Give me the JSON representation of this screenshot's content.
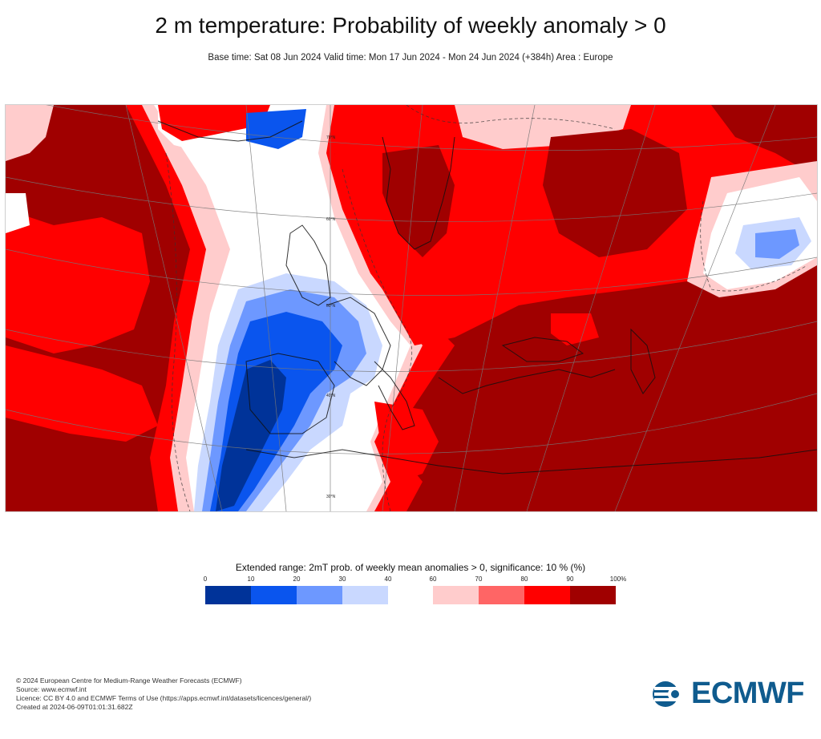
{
  "title": "2 m temperature: Probability of weekly anomaly > 0",
  "subtitle": "Base time: Sat 08 Jun 2024 Valid time: Mon 17 Jun 2024 - Mon 24 Jun 2024 (+384h) Area : Europe",
  "map": {
    "lat_labels": [
      "70°N",
      "60°N",
      "50°N",
      "40°N",
      "30°N"
    ],
    "colors": {
      "p0_10": "#003399",
      "p10_20": "#0a55ee",
      "p20_30": "#6d98ff",
      "p30_40": "#c9d8ff",
      "p40_60": "#ffffff",
      "p60_70": "#ffcccc",
      "p70_80": "#ff6565",
      "p80_90": "#ff0000",
      "p90_100": "#a00000"
    }
  },
  "legend": {
    "title": "Extended range: 2mT prob. of weekly mean anomalies > 0, significance: 10 % (%)",
    "ticks": [
      "0",
      "10",
      "20",
      "30",
      "40",
      "60",
      "70",
      "80",
      "90",
      "100%"
    ],
    "swatches": [
      "#003399",
      "#0a55ee",
      "#6d98ff",
      "#c9d8ff",
      "#ffcccc",
      "#ff6565",
      "#ff0000",
      "#a00000"
    ]
  },
  "footer": {
    "line1": "© 2024 European Centre for Medium-Range Weather Forecasts (ECMWF)",
    "line2": "Source: www.ecmwf.int",
    "line3": "Licence: CC BY 4.0 and ECMWF Terms of Use (https://apps.ecmwf.int/datasets/licences/general/)",
    "line4": "Created at 2024-06-09T01:01:31.682Z"
  },
  "logo": {
    "text": "ECMWF",
    "color": "#0f5b8e"
  }
}
